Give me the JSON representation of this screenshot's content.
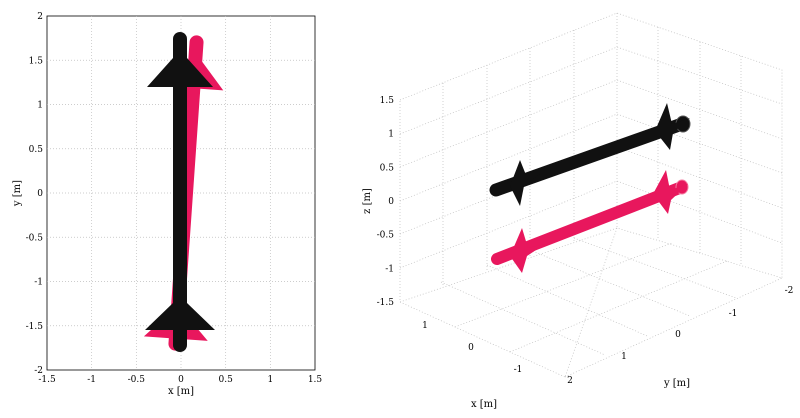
{
  "colors": {
    "black_series": "#111111",
    "pink_series": "#e8175d",
    "grid": "#bdbdbd"
  },
  "chart_data": [
    {
      "type": "line",
      "view": "2d-top",
      "xlabel": "x [m]",
      "ylabel": "y [m]",
      "xlim": [
        -1.5,
        1.5
      ],
      "ylim": [
        -2,
        2
      ],
      "xticks": [
        "-1.5",
        "-1",
        "-0.5",
        "0",
        "0.5",
        "1",
        "1.5"
      ],
      "yticks": [
        "-2",
        "-1.5",
        "-1",
        "-0.5",
        "0",
        "0.5",
        "1",
        "1.5",
        "2"
      ],
      "grid": true,
      "series": [
        {
          "color": "pink",
          "x": [
            0.15,
            -0.05
          ],
          "y": [
            1.75,
            -1.75
          ]
        },
        {
          "color": "black",
          "x": [
            0.0,
            0.0
          ],
          "y": [
            1.78,
            -1.78
          ]
        }
      ]
    },
    {
      "type": "line",
      "view": "3d",
      "xlabel": "x [m]",
      "ylabel": "y [m]",
      "zlabel": "z [m]",
      "xticks": [
        "1",
        "0",
        "-1"
      ],
      "yticks": [
        "2",
        "1",
        "0",
        "-1",
        "-2"
      ],
      "zticks": [
        "-1.5",
        "-1",
        "-0.5",
        "0",
        "0.5",
        "1",
        "1.5"
      ],
      "zlim": [
        -1.5,
        1.5
      ],
      "grid": true,
      "series": [
        {
          "color": "black",
          "z": [
            0.2,
            1.2
          ]
        },
        {
          "color": "pink",
          "z": [
            -0.9,
            0.2
          ]
        }
      ]
    }
  ]
}
